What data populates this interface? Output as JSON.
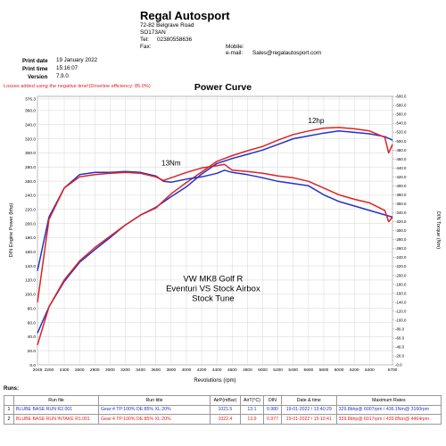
{
  "header": {
    "company_name": "Regal Autosport",
    "address_line1": "72-82 Belgrave Road",
    "address_line2": "SO173AN",
    "tel_label": "Tel:",
    "tel_value": "02380558636",
    "fax_label": "Fax:",
    "mobile_label": "Mobile:",
    "email_label": "e-mail:",
    "email_value": "Sales@regalautosport.com"
  },
  "meta": {
    "print_date_label": "Print date",
    "print_date": "19 January 2022",
    "print_time_label": "Print time",
    "print_time": "15:16:07",
    "version_label": "Version",
    "version": "7.9.0"
  },
  "loss_note": "Losses added using the negative time!(Driveline efficiency: 85.0%)",
  "colors": {
    "run1": "#2233cc",
    "run2": "#e02222",
    "grid": "#cccccc"
  },
  "chart_data": {
    "type": "line",
    "title": "Power Curve",
    "xlabel": "Revolutions (rpm)",
    "ylabel_left": "DIN Engine Power (bhp)",
    "ylabel_right": "DIN Torque (Nm)",
    "xlim": [
      2049,
      6700
    ],
    "ylim_left": [
      0,
      380
    ],
    "ylim_right": [
      0,
      600
    ],
    "x_ticks": [
      "2049",
      "2200",
      "2400",
      "2600",
      "2800",
      "3000",
      "3200",
      "3400",
      "3600",
      "3800",
      "4000",
      "4200",
      "4400",
      "4600",
      "4800",
      "5000",
      "5200",
      "5400",
      "5600",
      "5800",
      "6000",
      "6200",
      "6400",
      "6700"
    ],
    "y_ticks_left": [
      "0.0",
      "20.0",
      "40.0",
      "60.0",
      "80.0",
      "100.0",
      "120.0",
      "140.0",
      "160.0",
      "180.0",
      "200.0",
      "220.0",
      "240.0",
      "260.0",
      "280.0",
      "300.0",
      "320.0",
      "340.0",
      "360.0",
      "376.3"
    ],
    "y_ticks_right": [
      "0.0",
      "20.0",
      "40.0",
      "60.0",
      "80.0",
      "100.0",
      "120.0",
      "140.0",
      "160.0",
      "180.0",
      "200.0",
      "220.0",
      "240.0",
      "260.0",
      "280.0",
      "300.0",
      "320.0",
      "340.0",
      "360.0",
      "380.0",
      "400.0",
      "420.0",
      "440.0",
      "460.0",
      "480.0",
      "500.0",
      "520.0",
      "540.0",
      "560.0",
      "580.0",
      "600.0"
    ],
    "grid": true,
    "annotations": [
      {
        "text": "12hp",
        "x": 5700,
        "y_bhp": 342
      },
      {
        "text": "13Nm",
        "x": 3800,
        "y_bhp": 282
      },
      {
        "text": "VW MK8 Golf R",
        "x": 4350,
        "y_bhp": 118
      },
      {
        "text": "Eventuri VS Stock Airbox",
        "x": 4350,
        "y_bhp": 104
      },
      {
        "text": "Stock Tune",
        "x": 4350,
        "y_bhp": 90
      }
    ],
    "series": [
      {
        "name": "BLUBE BASE RUN R2.001",
        "unit": "bhp",
        "color": "#2233cc",
        "x": [
          2049,
          2200,
          2400,
          2600,
          2800,
          3000,
          3200,
          3400,
          3600,
          3800,
          4000,
          4200,
          4400,
          4600,
          4800,
          5000,
          5200,
          5400,
          5600,
          5800,
          6000,
          6200,
          6400,
          6600,
          6700
        ],
        "y": [
          45,
          82,
          118,
          145,
          163,
          180,
          198,
          212,
          223,
          238,
          252,
          270,
          285,
          292,
          298,
          304,
          312,
          320,
          324,
          328,
          331,
          329,
          327,
          323,
          318
        ]
      },
      {
        "name": "BLUBE BASE RUN INTAKE R1.001",
        "unit": "bhp",
        "color": "#e02222",
        "x": [
          2049,
          2200,
          2400,
          2600,
          2800,
          3000,
          3200,
          3400,
          3600,
          3800,
          4000,
          4200,
          4400,
          4600,
          4800,
          5000,
          5200,
          5400,
          5600,
          5800,
          6000,
          6200,
          6400,
          6600,
          6650,
          6700
        ],
        "y": [
          28,
          82,
          120,
          147,
          166,
          182,
          198,
          212,
          222,
          242,
          258,
          273,
          288,
          296,
          303,
          309,
          318,
          326,
          331,
          335,
          336,
          334,
          331,
          322,
          300,
          312
        ]
      },
      {
        "name": "BLUBE BASE RUN R2.001",
        "unit": "Nm",
        "color": "#2233cc",
        "x": [
          2049,
          2200,
          2400,
          2600,
          2800,
          3000,
          3200,
          3400,
          3600,
          3700,
          3800,
          4000,
          4200,
          4400,
          4500,
          4600,
          4800,
          5000,
          5200,
          5400,
          5600,
          5800,
          6000,
          6200,
          6400,
          6600,
          6700
        ],
        "y": [
          210,
          330,
          395,
          425,
          430,
          430,
          432,
          430,
          422,
          410,
          408,
          415,
          420,
          428,
          435,
          430,
          425,
          418,
          410,
          405,
          400,
          380,
          365,
          355,
          345,
          335,
          330
        ]
      },
      {
        "name": "BLUBE BASE RUN INTAKE R1.001",
        "unit": "Nm",
        "color": "#e02222",
        "x": [
          2049,
          2200,
          2400,
          2600,
          2800,
          3000,
          3200,
          3400,
          3600,
          3700,
          3800,
          4000,
          4200,
          4400,
          4500,
          4600,
          4800,
          5000,
          5200,
          5400,
          5600,
          5800,
          6000,
          6200,
          6400,
          6600,
          6650,
          6700
        ],
        "y": [
          140,
          325,
          395,
          420,
          425,
          428,
          430,
          428,
          420,
          412,
          418,
          430,
          440,
          445,
          448,
          435,
          432,
          428,
          422,
          418,
          410,
          395,
          380,
          370,
          362,
          345,
          320,
          330
        ]
      }
    ]
  },
  "runs": {
    "label": "Runs:",
    "columns": [
      "",
      "Run file",
      "Run title",
      "AirP(mBar)",
      "AirT(°C)",
      "DIN",
      "Date & time",
      "Maximum Rates"
    ],
    "rows": [
      {
        "index": "1",
        "file": "BLUBE BASE RUN R2.001",
        "title": "Gear:4 TP:100% DE:85% XL:20%",
        "airp": "1021.5",
        "airt": "13.1",
        "din": "0.980",
        "datetime": "19-01-2022 / 13:40:29",
        "max": "329.8bhp@ 6007rpm / 436.1Nm@ 3160rpm",
        "color": "#2233cc"
      },
      {
        "index": "2",
        "file": "BLUBE BASE RUN INTAKE R1.001",
        "title": "Gear:4 TP:100% DE:85% XL:20%",
        "airp": "1022.4",
        "airt": "13.9",
        "din": "0.977",
        "datetime": "19-01-2022 / 15:10:41",
        "max": "339.8bhp@ 6017rpm / 439.8Nm@ 4464rpm",
        "color": "#e02222"
      }
    ]
  }
}
